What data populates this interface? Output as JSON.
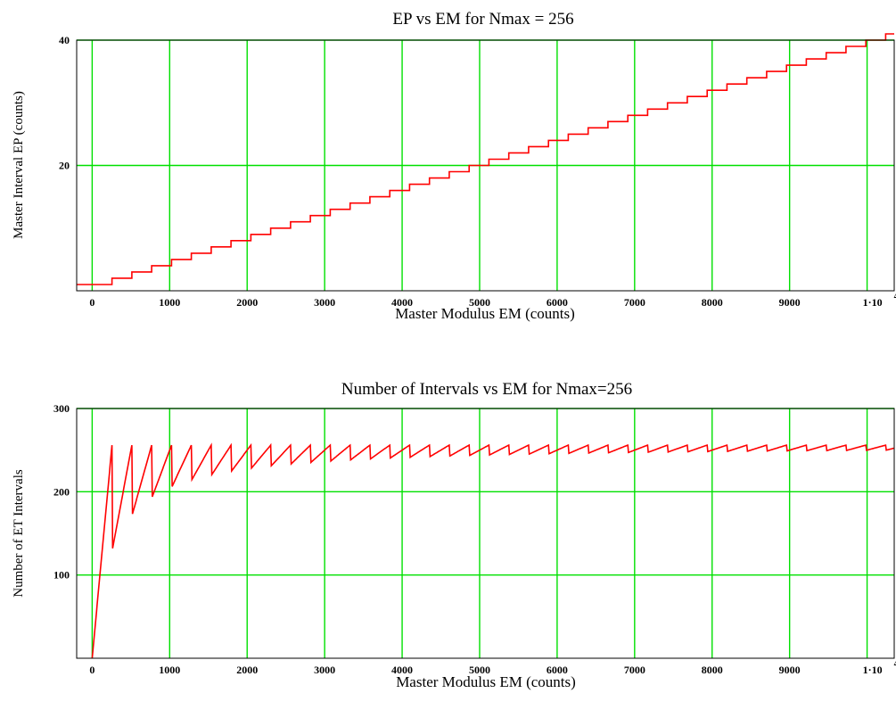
{
  "colors": {
    "grid": "#00e000",
    "series": "#ff0000",
    "frame": "#000000",
    "background": "#ffffff"
  },
  "chart_data": [
    {
      "type": "line",
      "title": "EP vs EM for Nmax = 256",
      "xlabel": "Master Modulus EM (counts)",
      "ylabel": "Master Interval EP (counts)",
      "xlim": [
        -200,
        10350
      ],
      "ylim": [
        0,
        40
      ],
      "x_ticks": [
        0,
        1000,
        2000,
        3000,
        4000,
        5000,
        6000,
        7000,
        8000,
        9000
      ],
      "x_tick_labels": [
        "0",
        "1000",
        "2000",
        "3000",
        "4000",
        "5000",
        "6000",
        "7000",
        "8000",
        "9000"
      ],
      "x_tick_last": {
        "value": 10000,
        "mantissa": "1·10",
        "exponent": "4"
      },
      "y_ticks": [
        20,
        40
      ],
      "y_tick_labels": [
        "20",
        "40"
      ],
      "grid": true,
      "series": [
        {
          "function": "EP = ceil(EM / 256)",
          "x_range": [
            -200,
            10350
          ],
          "nmax": 256,
          "ep_min": 1
        }
      ]
    },
    {
      "type": "line",
      "title": "Number of Intervals vs EM for Nmax=256",
      "xlabel": "Master Modulus EM (counts)",
      "ylabel": "Number of ET Intervals",
      "xlim": [
        -200,
        10350
      ],
      "ylim": [
        0,
        300
      ],
      "x_ticks": [
        0,
        1000,
        2000,
        3000,
        4000,
        5000,
        6000,
        7000,
        8000,
        9000
      ],
      "x_tick_labels": [
        "0",
        "1000",
        "2000",
        "3000",
        "4000",
        "5000",
        "6000",
        "7000",
        "8000",
        "9000"
      ],
      "x_tick_last": {
        "value": 10000,
        "mantissa": "1·10",
        "exponent": "4"
      },
      "y_ticks": [
        100,
        200,
        300
      ],
      "y_tick_labels": [
        "100",
        "200",
        "300"
      ],
      "grid": true,
      "series": [
        {
          "function": "N = EM / ceil(EM / 256)",
          "x_range": [
            -200,
            10350
          ],
          "nmax": 256,
          "ep_min": 1
        }
      ]
    }
  ]
}
